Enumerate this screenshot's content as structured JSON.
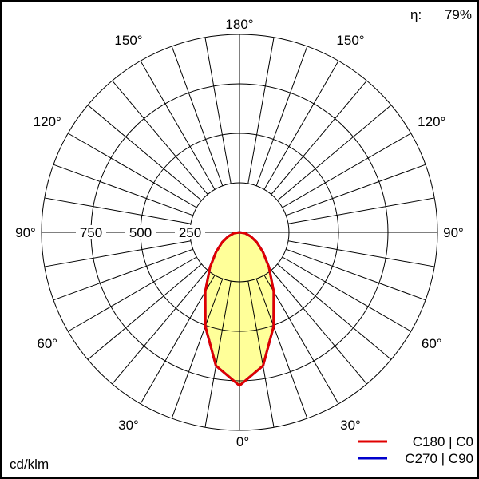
{
  "chart_data": {
    "type": "polar",
    "unit_label": "cd/klm",
    "efficiency_label": "η:",
    "efficiency_value": "79%",
    "radial_max": 1000,
    "radial_ticks": [
      250,
      500,
      750
    ],
    "radial_tick_labels": [
      "250",
      "500",
      "750"
    ],
    "angle_step_deg": 10,
    "angle_labels": {
      "top": "180°",
      "left": [
        "150°",
        "120°",
        "90°",
        "60°",
        "30°"
      ],
      "right": [
        "150°",
        "120°",
        "90°",
        "60°",
        "30°"
      ],
      "bottom": "0°"
    },
    "grid": true,
    "fill_color": "#ffff99",
    "legend_placement": "bottom-right",
    "series": [
      {
        "name": "C270 | C90",
        "color": "#0000cc",
        "gamma": [
          0,
          10,
          20,
          30,
          40,
          50,
          60,
          70,
          80,
          90
        ],
        "values": [
          774,
          684,
          505,
          346,
          232,
          155,
          101,
          61,
          29,
          0
        ]
      },
      {
        "name": "C180 | C0",
        "color": "#e00000",
        "gamma": [
          0,
          10,
          20,
          30,
          40,
          50,
          60,
          70,
          80,
          90
        ],
        "values": [
          774,
          684,
          505,
          346,
          232,
          155,
          101,
          61,
          29,
          0
        ]
      }
    ]
  }
}
